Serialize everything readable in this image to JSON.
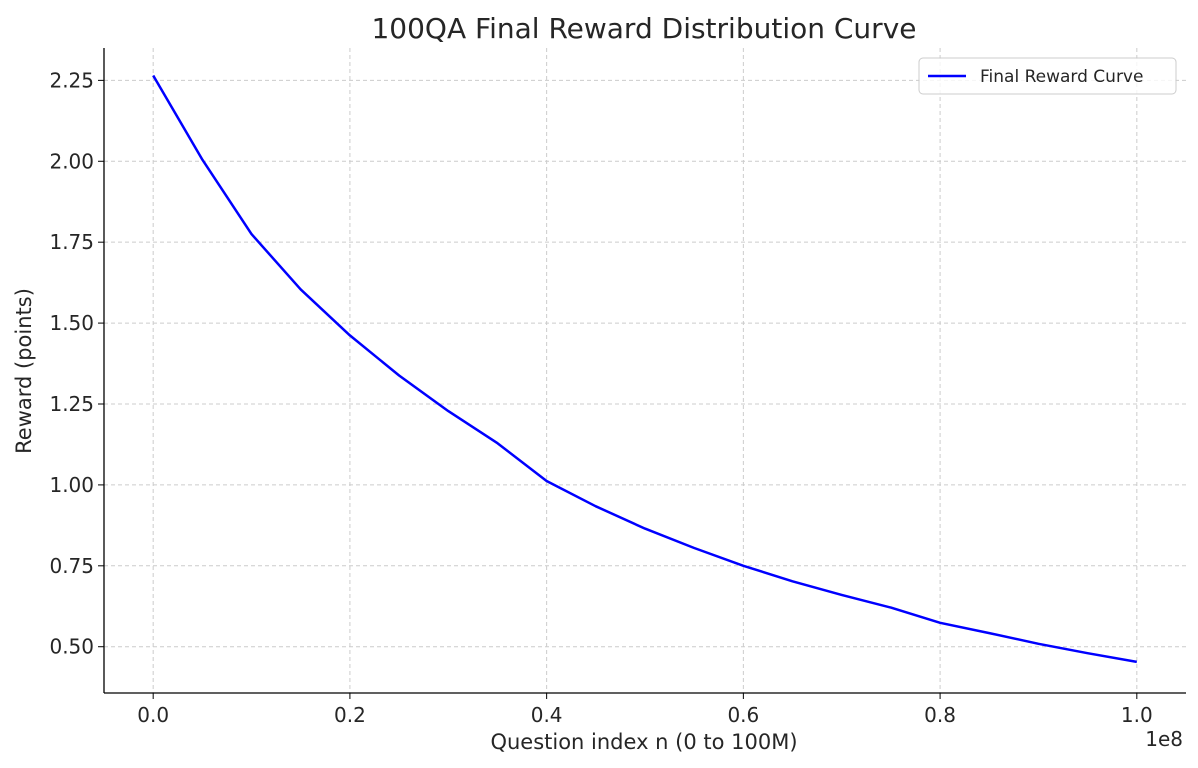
{
  "chart_data": {
    "type": "line",
    "title": "100QA Final Reward Distribution Curve",
    "xlabel": "Question index n (0 to 100M)",
    "ylabel": "Reward (points)",
    "x_offset_label": "1e8",
    "xlim": [
      -0.05,
      1.05
    ],
    "ylim": [
      0.357,
      2.35
    ],
    "x_ticks": [
      0.0,
      0.2,
      0.4,
      0.6,
      0.8,
      1.0
    ],
    "x_tick_labels": [
      "0.0",
      "0.2",
      "0.4",
      "0.6",
      "0.8",
      "1.0"
    ],
    "y_ticks": [
      0.5,
      0.75,
      1.0,
      1.25,
      1.5,
      1.75,
      2.0,
      2.25
    ],
    "y_tick_labels": [
      "0.50",
      "0.75",
      "1.00",
      "1.25",
      "1.50",
      "1.75",
      "2.00",
      "2.25"
    ],
    "grid": true,
    "legend_position": "top-right",
    "series": [
      {
        "name": "Final Reward Curve",
        "color": "#0000ff",
        "x": [
          0.0,
          0.05,
          0.1,
          0.15,
          0.2,
          0.25,
          0.3,
          0.35,
          0.4,
          0.45,
          0.5,
          0.55,
          0.6,
          0.65,
          0.7,
          0.75,
          0.8,
          0.85,
          0.9,
          0.95,
          1.0
        ],
        "y": [
          2.265,
          2.005,
          1.775,
          1.604,
          1.462,
          1.338,
          1.228,
          1.129,
          1.012,
          0.934,
          0.865,
          0.805,
          0.75,
          0.702,
          0.66,
          0.621,
          0.574,
          0.542,
          0.509,
          0.48,
          0.453
        ]
      }
    ]
  }
}
